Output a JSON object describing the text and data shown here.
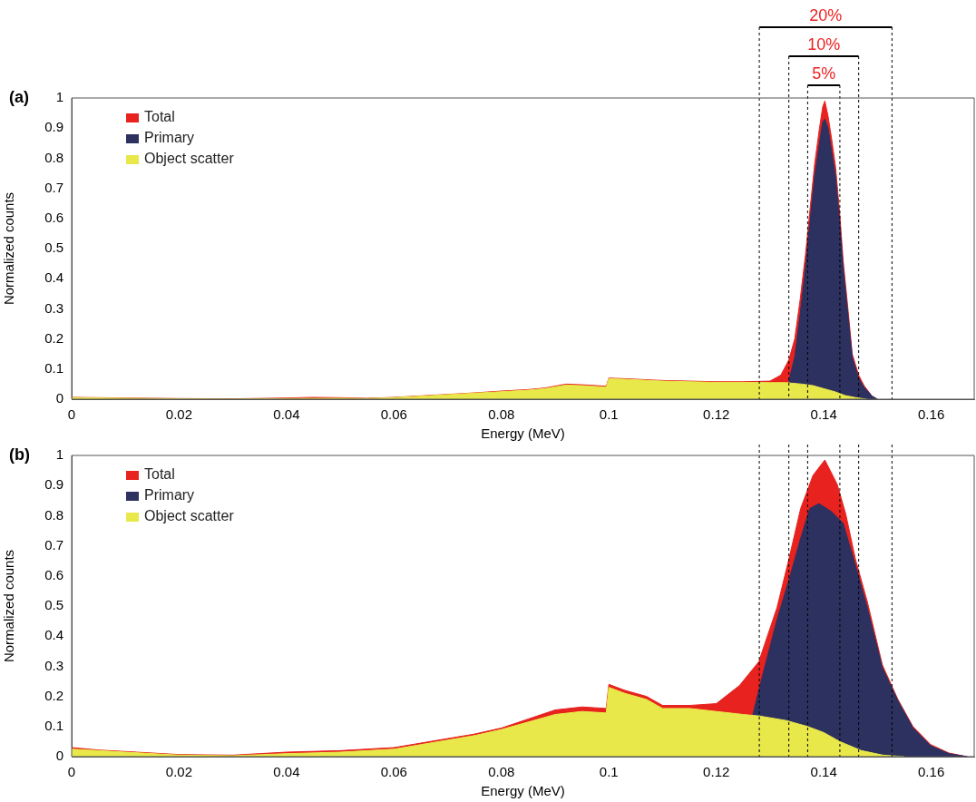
{
  "chart_data": [
    {
      "type": "area",
      "title": "(a)",
      "xlabel": "Energy (MeV)",
      "ylabel": "Normalized counts",
      "xlim": [
        0,
        0.168
      ],
      "ylim": [
        0,
        1
      ],
      "xticks": [
        0,
        0.02,
        0.04,
        0.06,
        0.08,
        0.1,
        0.12,
        0.14,
        0.16
      ],
      "yticks": [
        0,
        0.1,
        0.2,
        0.3,
        0.4,
        0.5,
        0.6,
        0.7,
        0.8,
        0.9,
        1
      ],
      "legend": "top left",
      "annotations": [
        "20%",
        "10%",
        "5%"
      ],
      "ref_lines": [
        {
          "axis": "x",
          "value": 0.128,
          "color": "#000000",
          "line_style": "dashed"
        },
        {
          "axis": "x",
          "value": 0.1335,
          "color": "#000000",
          "line_style": "dashed"
        },
        {
          "axis": "x",
          "value": 0.137,
          "color": "#000000",
          "line_style": "dashed"
        },
        {
          "axis": "x",
          "value": 0.143,
          "color": "#000000",
          "line_style": "dashed"
        },
        {
          "axis": "x",
          "value": 0.1465,
          "color": "#000000",
          "line_style": "dashed"
        },
        {
          "axis": "x",
          "value": 0.1527,
          "color": "#000000",
          "line_style": "dashed"
        }
      ],
      "series": [
        {
          "name": "Total",
          "color": "#e8221f",
          "x": [
            0,
            0.01,
            0.02,
            0.03,
            0.04,
            0.045,
            0.05,
            0.055,
            0.06,
            0.065,
            0.07,
            0.075,
            0.08,
            0.085,
            0.088,
            0.092,
            0.095,
            0.0995,
            0.1,
            0.103,
            0.11,
            0.115,
            0.12,
            0.125,
            0.13,
            0.132,
            0.1335,
            0.1346,
            0.1356,
            0.1366,
            0.1375,
            0.1383,
            0.1392,
            0.1398,
            0.1402,
            0.1408,
            0.1415,
            0.1422,
            0.143,
            0.1436,
            0.1445,
            0.1453,
            0.1465,
            0.1475,
            0.149,
            0.15
          ],
          "values": [
            0.006,
            0.004,
            0.002,
            0.001,
            0.004,
            0.006,
            0.005,
            0.003,
            0.006,
            0.011,
            0.016,
            0.021,
            0.027,
            0.032,
            0.037,
            0.05,
            0.048,
            0.043,
            0.07,
            0.068,
            0.062,
            0.06,
            0.058,
            0.058,
            0.06,
            0.08,
            0.13,
            0.2,
            0.33,
            0.48,
            0.64,
            0.78,
            0.9,
            0.97,
            0.99,
            0.94,
            0.86,
            0.77,
            0.61,
            0.46,
            0.3,
            0.15,
            0.08,
            0.045,
            0.01,
            0
          ]
        },
        {
          "name": "Primary",
          "color": "#2d3160",
          "x": [
            0.1335,
            0.1346,
            0.1356,
            0.1366,
            0.1375,
            0.1383,
            0.1392,
            0.1398,
            0.1402,
            0.1408,
            0.1415,
            0.1422,
            0.143,
            0.1436,
            0.1445,
            0.1453,
            0.1465,
            0.1475,
            0.149,
            0.15
          ],
          "values": [
            0.06,
            0.14,
            0.28,
            0.44,
            0.6,
            0.74,
            0.85,
            0.92,
            0.93,
            0.9,
            0.82,
            0.74,
            0.58,
            0.44,
            0.28,
            0.14,
            0.07,
            0.04,
            0.01,
            0
          ]
        },
        {
          "name": "Object scatter",
          "color": "#e8e84a",
          "x": [
            0,
            0.01,
            0.02,
            0.03,
            0.04,
            0.05,
            0.055,
            0.06,
            0.065,
            0.07,
            0.075,
            0.08,
            0.085,
            0.088,
            0.092,
            0.095,
            0.0995,
            0.1,
            0.103,
            0.11,
            0.115,
            0.12,
            0.125,
            0.13,
            0.133,
            0.136,
            0.138,
            0.14,
            0.142,
            0.144,
            0.146,
            0.148
          ],
          "values": [
            0.005,
            0.003,
            0.001,
            0,
            0.002,
            0.003,
            0.002,
            0.005,
            0.01,
            0.015,
            0.02,
            0.025,
            0.03,
            0.035,
            0.047,
            0.045,
            0.04,
            0.068,
            0.066,
            0.06,
            0.058,
            0.056,
            0.056,
            0.055,
            0.055,
            0.05,
            0.045,
            0.035,
            0.025,
            0.012,
            0.005,
            0
          ]
        }
      ]
    },
    {
      "type": "area",
      "title": "(b)",
      "xlabel": "Energy (MeV)",
      "ylabel": "Normalized counts",
      "xlim": [
        0,
        0.168
      ],
      "ylim": [
        0,
        1
      ],
      "xticks": [
        0,
        0.02,
        0.04,
        0.06,
        0.08,
        0.1,
        0.12,
        0.14,
        0.16
      ],
      "yticks": [
        0,
        0.1,
        0.2,
        0.3,
        0.4,
        0.5,
        0.6,
        0.7,
        0.8,
        0.9,
        1
      ],
      "legend": "top left",
      "ref_lines": [
        {
          "axis": "x",
          "value": 0.128,
          "color": "#000000",
          "line_style": "dashed"
        },
        {
          "axis": "x",
          "value": 0.1335,
          "color": "#000000",
          "line_style": "dashed"
        },
        {
          "axis": "x",
          "value": 0.137,
          "color": "#000000",
          "line_style": "dashed"
        },
        {
          "axis": "x",
          "value": 0.143,
          "color": "#000000",
          "line_style": "dashed"
        },
        {
          "axis": "x",
          "value": 0.1465,
          "color": "#000000",
          "line_style": "dashed"
        },
        {
          "axis": "x",
          "value": 0.1527,
          "color": "#000000",
          "line_style": "dashed"
        }
      ],
      "series": [
        {
          "name": "Total",
          "color": "#e8221f",
          "x": [
            0,
            0.005,
            0.01,
            0.02,
            0.03,
            0.04,
            0.05,
            0.06,
            0.065,
            0.07,
            0.075,
            0.08,
            0.085,
            0.09,
            0.095,
            0.0995,
            0.1,
            0.103,
            0.107,
            0.11,
            0.115,
            0.12,
            0.1243,
            0.1279,
            0.1313,
            0.1335,
            0.1357,
            0.138,
            0.1402,
            0.1425,
            0.1441,
            0.1459,
            0.1481,
            0.1509,
            0.1538,
            0.1566,
            0.1599,
            0.1633,
            0.1667
          ],
          "values": [
            0.03,
            0.022,
            0.017,
            0.007,
            0.005,
            0.015,
            0.02,
            0.03,
            0.045,
            0.06,
            0.075,
            0.095,
            0.125,
            0.155,
            0.165,
            0.16,
            0.24,
            0.22,
            0.2,
            0.17,
            0.17,
            0.176,
            0.236,
            0.315,
            0.495,
            0.655,
            0.824,
            0.934,
            0.985,
            0.904,
            0.805,
            0.655,
            0.515,
            0.305,
            0.19,
            0.1,
            0.04,
            0.012,
            0
          ]
        },
        {
          "name": "Primary",
          "color": "#2d3160",
          "x": [
            0.1268,
            0.1284,
            0.1313,
            0.1335,
            0.1357,
            0.1374,
            0.1391,
            0.1414,
            0.1436,
            0.1459,
            0.1481,
            0.1509,
            0.1538,
            0.1566,
            0.1599,
            0.1633,
            0.1667
          ],
          "values": [
            0.14,
            0.255,
            0.455,
            0.585,
            0.725,
            0.824,
            0.84,
            0.814,
            0.775,
            0.635,
            0.495,
            0.296,
            0.186,
            0.096,
            0.036,
            0.01,
            0
          ]
        },
        {
          "name": "Object scatter",
          "color": "#e8e84a",
          "x": [
            0,
            0.005,
            0.01,
            0.02,
            0.03,
            0.04,
            0.05,
            0.06,
            0.065,
            0.07,
            0.075,
            0.08,
            0.085,
            0.09,
            0.095,
            0.0995,
            0.1,
            0.103,
            0.107,
            0.11,
            0.115,
            0.12,
            0.125,
            0.128,
            0.133,
            0.137,
            0.14,
            0.143,
            0.147,
            0.151,
            0.155
          ],
          "values": [
            0.025,
            0.02,
            0.015,
            0.005,
            0.003,
            0.01,
            0.015,
            0.025,
            0.04,
            0.055,
            0.07,
            0.09,
            0.115,
            0.14,
            0.15,
            0.145,
            0.23,
            0.21,
            0.19,
            0.16,
            0.16,
            0.15,
            0.14,
            0.135,
            0.12,
            0.1,
            0.08,
            0.05,
            0.02,
            0.005,
            0
          ]
        }
      ]
    }
  ]
}
